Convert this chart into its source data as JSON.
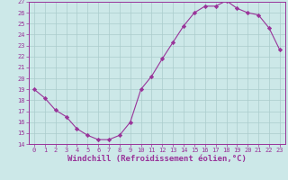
{
  "x": [
    0,
    1,
    2,
    3,
    4,
    5,
    6,
    7,
    8,
    9,
    10,
    11,
    12,
    13,
    14,
    15,
    16,
    17,
    18,
    19,
    20,
    21,
    22,
    23
  ],
  "y": [
    19,
    18.2,
    17.1,
    16.5,
    15.4,
    14.8,
    14.4,
    14.4,
    14.8,
    16.0,
    19.0,
    20.2,
    21.8,
    23.3,
    24.8,
    26.0,
    26.6,
    26.6,
    27.1,
    26.4,
    26.0,
    25.8,
    24.6,
    22.6
  ],
  "line_color": "#993399",
  "marker": "D",
  "marker_size": 2.2,
  "bg_color": "#cce8e8",
  "grid_color": "#aacccc",
  "ylim": [
    14,
    27
  ],
  "xlim": [
    -0.5,
    23.5
  ],
  "yticks": [
    14,
    15,
    16,
    17,
    18,
    19,
    20,
    21,
    22,
    23,
    24,
    25,
    26,
    27
  ],
  "xticks": [
    0,
    1,
    2,
    3,
    4,
    5,
    6,
    7,
    8,
    9,
    10,
    11,
    12,
    13,
    14,
    15,
    16,
    17,
    18,
    19,
    20,
    21,
    22,
    23
  ],
  "xlabel": "Windchill (Refroidissement éolien,°C)",
  "tick_color": "#993399",
  "tick_fontsize": 5.0,
  "xlabel_fontsize": 6.5,
  "linewidth": 0.8
}
